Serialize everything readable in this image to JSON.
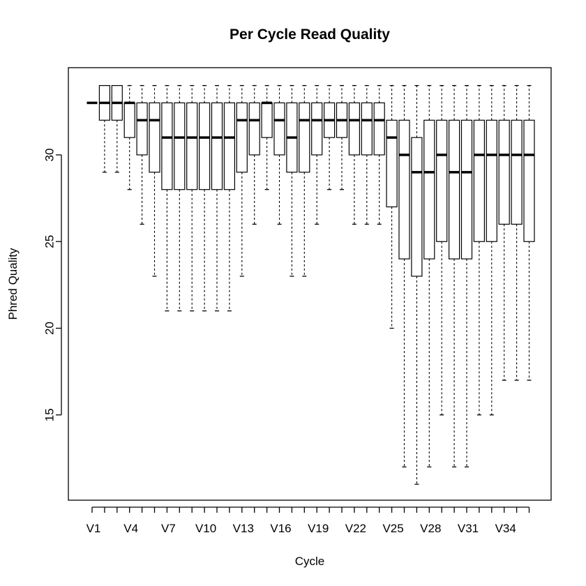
{
  "chart_data": {
    "type": "boxplot",
    "title": "Per Cycle Read Quality",
    "xlabel": "Cycle",
    "ylabel": "Phred Quality",
    "y_ticks": [
      15,
      20,
      25,
      30
    ],
    "y_tick_labels": [
      "15",
      "20",
      "25",
      "30"
    ],
    "ylim": [
      10.5,
      35.0
    ],
    "categories": [
      "V1",
      "V2",
      "V3",
      "V4",
      "V5",
      "V6",
      "V7",
      "V8",
      "V9",
      "V10",
      "V11",
      "V12",
      "V13",
      "V14",
      "V15",
      "V16",
      "V17",
      "V18",
      "V19",
      "V20",
      "V21",
      "V22",
      "V23",
      "V24",
      "V25",
      "V26",
      "V27",
      "V28",
      "V29",
      "V30",
      "V31",
      "V32",
      "V33",
      "V34",
      "V35",
      "V36"
    ],
    "x_tick_labels": [
      "V1",
      "V4",
      "V7",
      "V10",
      "V13",
      "V16",
      "V19",
      "V22",
      "V25",
      "V28",
      "V31",
      "V34"
    ],
    "boxes": [
      {
        "name": "V1",
        "min": 33,
        "q1": 33,
        "median": 33,
        "q3": 33,
        "max": 33
      },
      {
        "name": "V2",
        "min": 29,
        "q1": 32,
        "median": 33,
        "q3": 34,
        "max": 34
      },
      {
        "name": "V3",
        "min": 29,
        "q1": 32,
        "median": 33,
        "q3": 34,
        "max": 34
      },
      {
        "name": "V4",
        "min": 28,
        "q1": 31,
        "median": 33,
        "q3": 33,
        "max": 34
      },
      {
        "name": "V5",
        "min": 26,
        "q1": 30,
        "median": 32,
        "q3": 33,
        "max": 34
      },
      {
        "name": "V6",
        "min": 23,
        "q1": 29,
        "median": 32,
        "q3": 33,
        "max": 34
      },
      {
        "name": "V7",
        "min": 21,
        "q1": 28,
        "median": 31,
        "q3": 33,
        "max": 34
      },
      {
        "name": "V8",
        "min": 21,
        "q1": 28,
        "median": 31,
        "q3": 33,
        "max": 34
      },
      {
        "name": "V9",
        "min": 21,
        "q1": 28,
        "median": 31,
        "q3": 33,
        "max": 34
      },
      {
        "name": "V10",
        "min": 21,
        "q1": 28,
        "median": 31,
        "q3": 33,
        "max": 34
      },
      {
        "name": "V11",
        "min": 21,
        "q1": 28,
        "median": 31,
        "q3": 33,
        "max": 34
      },
      {
        "name": "V12",
        "min": 21,
        "q1": 28,
        "median": 31,
        "q3": 33,
        "max": 34
      },
      {
        "name": "V13",
        "min": 23,
        "q1": 29,
        "median": 32,
        "q3": 33,
        "max": 34
      },
      {
        "name": "V14",
        "min": 26,
        "q1": 30,
        "median": 32,
        "q3": 33,
        "max": 34
      },
      {
        "name": "V15",
        "min": 28,
        "q1": 31,
        "median": 33,
        "q3": 33,
        "max": 34
      },
      {
        "name": "V16",
        "min": 26,
        "q1": 30,
        "median": 32,
        "q3": 33,
        "max": 34
      },
      {
        "name": "V17",
        "min": 23,
        "q1": 29,
        "median": 31,
        "q3": 33,
        "max": 34
      },
      {
        "name": "V18",
        "min": 23,
        "q1": 29,
        "median": 32,
        "q3": 33,
        "max": 34
      },
      {
        "name": "V19",
        "min": 26,
        "q1": 30,
        "median": 32,
        "q3": 33,
        "max": 34
      },
      {
        "name": "V20",
        "min": 28,
        "q1": 31,
        "median": 32,
        "q3": 33,
        "max": 34
      },
      {
        "name": "V21",
        "min": 28,
        "q1": 31,
        "median": 32,
        "q3": 33,
        "max": 34
      },
      {
        "name": "V22",
        "min": 26,
        "q1": 30,
        "median": 32,
        "q3": 33,
        "max": 34
      },
      {
        "name": "V23",
        "min": 26,
        "q1": 30,
        "median": 32,
        "q3": 33,
        "max": 34
      },
      {
        "name": "V24",
        "min": 26,
        "q1": 30,
        "median": 32,
        "q3": 33,
        "max": 34
      },
      {
        "name": "V25",
        "min": 20,
        "q1": 27,
        "median": 31,
        "q3": 32,
        "max": 34
      },
      {
        "name": "V26",
        "min": 12,
        "q1": 24,
        "median": 30,
        "q3": 32,
        "max": 34
      },
      {
        "name": "V27",
        "min": 11,
        "q1": 23,
        "median": 29,
        "q3": 31,
        "max": 34
      },
      {
        "name": "V28",
        "min": 12,
        "q1": 24,
        "median": 29,
        "q3": 32,
        "max": 34
      },
      {
        "name": "V29",
        "min": 15,
        "q1": 25,
        "median": 30,
        "q3": 32,
        "max": 34
      },
      {
        "name": "V30",
        "min": 12,
        "q1": 24,
        "median": 29,
        "q3": 32,
        "max": 34
      },
      {
        "name": "V31",
        "min": 12,
        "q1": 24,
        "median": 29,
        "q3": 32,
        "max": 34
      },
      {
        "name": "V32",
        "min": 15,
        "q1": 25,
        "median": 30,
        "q3": 32,
        "max": 34
      },
      {
        "name": "V33",
        "min": 15,
        "q1": 25,
        "median": 30,
        "q3": 32,
        "max": 34
      },
      {
        "name": "V34",
        "min": 17,
        "q1": 26,
        "median": 30,
        "q3": 32,
        "max": 34
      },
      {
        "name": "V35",
        "min": 17,
        "q1": 26,
        "median": 30,
        "q3": 32,
        "max": 34
      },
      {
        "name": "V36",
        "min": 17,
        "q1": 25,
        "median": 30,
        "q3": 32,
        "max": 34
      }
    ],
    "grid": false,
    "legend": "none"
  }
}
